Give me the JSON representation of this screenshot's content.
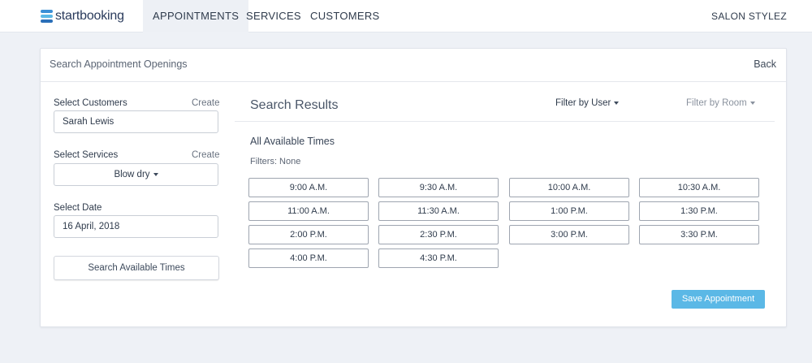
{
  "app": {
    "logo_text": "startbooking",
    "nav": [
      {
        "label": "APPOINTMENTS",
        "active": true
      },
      {
        "label": "SERVICES",
        "active": false
      },
      {
        "label": "CUSTOMERS",
        "active": false
      }
    ],
    "salon_name": "SALON STYLEZ",
    "brand_color": "#3b8fd6"
  },
  "card": {
    "title": "Search Appointment Openings",
    "back_label": "Back"
  },
  "form": {
    "customers_label": "Select Customers",
    "customers_create": "Create",
    "customer_value": "Sarah Lewis",
    "services_label": "Select Services",
    "services_create": "Create",
    "service_value": "Blow dry",
    "date_label": "Select Date",
    "date_value": "16 April, 2018",
    "search_button": "Search Available Times"
  },
  "results": {
    "title": "Search Results",
    "filter_user": "Filter by User",
    "filter_room": "Filter by Room",
    "available_title": "All Available Times",
    "filters_text": "Filters: None",
    "slots": [
      "9:00 A.M.",
      "9:30 A.M.",
      "10:00 A.M.",
      "10:30 A.M.",
      "11:00 A.M.",
      "11:30 A.M.",
      "1:00 P.M.",
      "1:30 P.M.",
      "2:00 P.M.",
      "2:30 P.M.",
      "3:00 P.M.",
      "3:30 P.M.",
      "4:00 P.M.",
      "4:30 P.M."
    ],
    "save_button": "Save Appointment",
    "save_color": "#5bb8e6"
  }
}
